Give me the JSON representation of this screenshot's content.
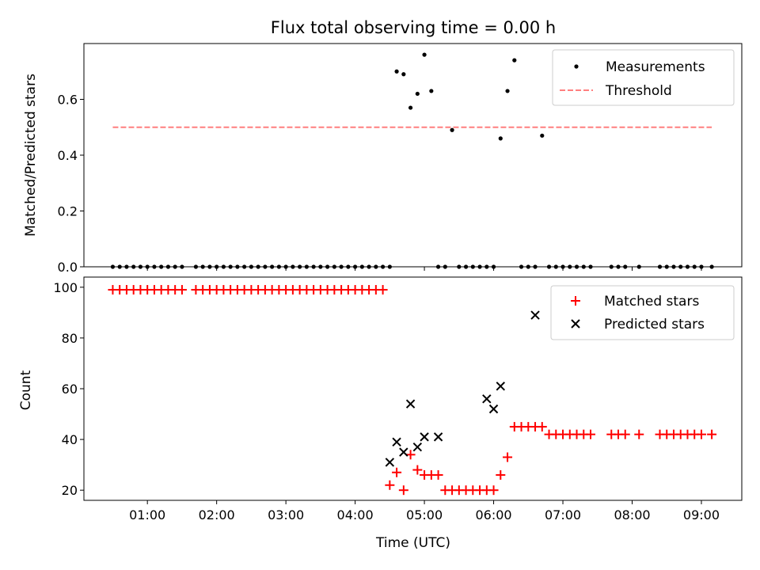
{
  "chart_data": [
    {
      "type": "scatter",
      "title": "Flux total observing time = 0.00 h",
      "xlabel": "",
      "ylabel": "Matched/Predicted stars",
      "ylim": [
        0,
        0.8
      ],
      "xlim": [
        "00:05",
        "09:35"
      ],
      "yticks": [
        0.0,
        0.2,
        0.4,
        0.6
      ],
      "ytick_labels": [
        "0.0",
        "0.2",
        "0.4",
        "0.6"
      ],
      "legend_position": "top-right",
      "series": [
        {
          "name": "Measurements",
          "kind": "scatter",
          "color": "#000000",
          "marker": "dot",
          "x": [
            "00:30",
            "00:36",
            "00:42",
            "00:48",
            "00:54",
            "01:00",
            "01:06",
            "01:12",
            "01:18",
            "01:24",
            "01:30",
            "01:42",
            "01:48",
            "01:54",
            "02:00",
            "02:06",
            "02:12",
            "02:18",
            "02:24",
            "02:30",
            "02:36",
            "02:42",
            "02:48",
            "02:54",
            "03:00",
            "03:06",
            "03:12",
            "03:18",
            "03:24",
            "03:30",
            "03:36",
            "03:42",
            "03:48",
            "03:54",
            "04:00",
            "04:06",
            "04:12",
            "04:18",
            "04:24",
            "04:30",
            "04:36",
            "04:42",
            "04:48",
            "04:54",
            "05:00",
            "05:06",
            "05:12",
            "05:18",
            "05:24",
            "05:30",
            "05:36",
            "05:42",
            "05:48",
            "05:54",
            "06:00",
            "06:06",
            "06:12",
            "06:18",
            "06:24",
            "06:30",
            "06:36",
            "06:42",
            "06:48",
            "06:54",
            "07:00",
            "07:06",
            "07:12",
            "07:18",
            "07:24",
            "07:42",
            "07:48",
            "07:54",
            "08:06",
            "08:24",
            "08:30",
            "08:36",
            "08:42",
            "08:48",
            "08:54",
            "09:00",
            "09:09"
          ],
          "y": [
            0,
            0,
            0,
            0,
            0,
            0,
            0,
            0,
            0,
            0,
            0,
            0,
            0,
            0,
            0,
            0,
            0,
            0,
            0,
            0,
            0,
            0,
            0,
            0,
            0,
            0,
            0,
            0,
            0,
            0,
            0,
            0,
            0,
            0,
            0,
            0,
            0,
            0,
            0,
            0,
            0.7,
            0.69,
            0.57,
            0.62,
            0.76,
            0.63,
            0,
            0,
            0.49,
            0,
            0,
            0,
            0,
            0,
            0,
            0.46,
            0.63,
            0.74,
            0,
            0,
            0,
            0.47,
            0,
            0,
            0,
            0,
            0,
            0,
            0,
            0,
            0,
            0,
            0,
            0,
            0,
            0,
            0,
            0,
            0,
            0,
            0
          ]
        },
        {
          "name": "Threshold",
          "kind": "line",
          "color": "#ff7f7f",
          "dash": "dashed",
          "x": [
            "00:30",
            "09:09"
          ],
          "y": [
            0.5,
            0.5
          ]
        }
      ]
    },
    {
      "type": "scatter",
      "title": "",
      "xlabel": "Time (UTC)",
      "ylabel": "Count",
      "ylim": [
        16,
        104
      ],
      "xlim": [
        "00:05",
        "09:35"
      ],
      "xticks": [
        "01:00",
        "02:00",
        "03:00",
        "04:00",
        "05:00",
        "06:00",
        "07:00",
        "08:00",
        "09:00"
      ],
      "xtick_labels": [
        "01:00",
        "02:00",
        "03:00",
        "04:00",
        "05:00",
        "06:00",
        "07:00",
        "08:00",
        "09:00"
      ],
      "yticks": [
        20,
        40,
        60,
        80,
        100
      ],
      "ytick_labels": [
        "20",
        "40",
        "60",
        "80",
        "100"
      ],
      "legend_position": "top-right",
      "series": [
        {
          "name": "Matched stars",
          "kind": "scatter",
          "color": "#ff0000",
          "marker": "plus",
          "x": [
            "00:30",
            "00:36",
            "00:42",
            "00:48",
            "00:54",
            "01:00",
            "01:06",
            "01:12",
            "01:18",
            "01:24",
            "01:30",
            "01:42",
            "01:48",
            "01:54",
            "02:00",
            "02:06",
            "02:12",
            "02:18",
            "02:24",
            "02:30",
            "02:36",
            "02:42",
            "02:48",
            "02:54",
            "03:00",
            "03:06",
            "03:12",
            "03:18",
            "03:24",
            "03:30",
            "03:36",
            "03:42",
            "03:48",
            "03:54",
            "04:00",
            "04:06",
            "04:12",
            "04:18",
            "04:24",
            "04:30",
            "04:36",
            "04:42",
            "04:48",
            "04:54",
            "05:00",
            "05:06",
            "05:12",
            "05:18",
            "05:24",
            "05:30",
            "05:36",
            "05:42",
            "05:48",
            "05:54",
            "06:00",
            "06:06",
            "06:12",
            "06:18",
            "06:24",
            "06:30",
            "06:36",
            "06:42",
            "06:48",
            "06:54",
            "07:00",
            "07:06",
            "07:12",
            "07:18",
            "07:24",
            "07:42",
            "07:48",
            "07:54",
            "08:06",
            "08:24",
            "08:30",
            "08:36",
            "08:42",
            "08:48",
            "08:54",
            "09:00",
            "09:09"
          ],
          "y": [
            99,
            99,
            99,
            99,
            99,
            99,
            99,
            99,
            99,
            99,
            99,
            99,
            99,
            99,
            99,
            99,
            99,
            99,
            99,
            99,
            99,
            99,
            99,
            99,
            99,
            99,
            99,
            99,
            99,
            99,
            99,
            99,
            99,
            99,
            99,
            99,
            99,
            99,
            99,
            22,
            27,
            20,
            34,
            28,
            26,
            26,
            26,
            20,
            20,
            20,
            20,
            20,
            20,
            20,
            20,
            26,
            33,
            45,
            45,
            45,
            45,
            45,
            42,
            42,
            42,
            42,
            42,
            42,
            42,
            42,
            42,
            42,
            42,
            42,
            42,
            42,
            42,
            42,
            42,
            42,
            42
          ]
        },
        {
          "name": "Predicted stars",
          "kind": "scatter",
          "color": "#000000",
          "marker": "x",
          "x": [
            "04:30",
            "04:36",
            "04:42",
            "04:48",
            "04:54",
            "05:00",
            "05:12",
            "05:54",
            "06:00",
            "06:06",
            "06:36"
          ],
          "y": [
            31,
            39,
            35,
            54,
            37,
            41,
            41,
            56,
            52,
            61,
            89
          ]
        }
      ]
    }
  ]
}
